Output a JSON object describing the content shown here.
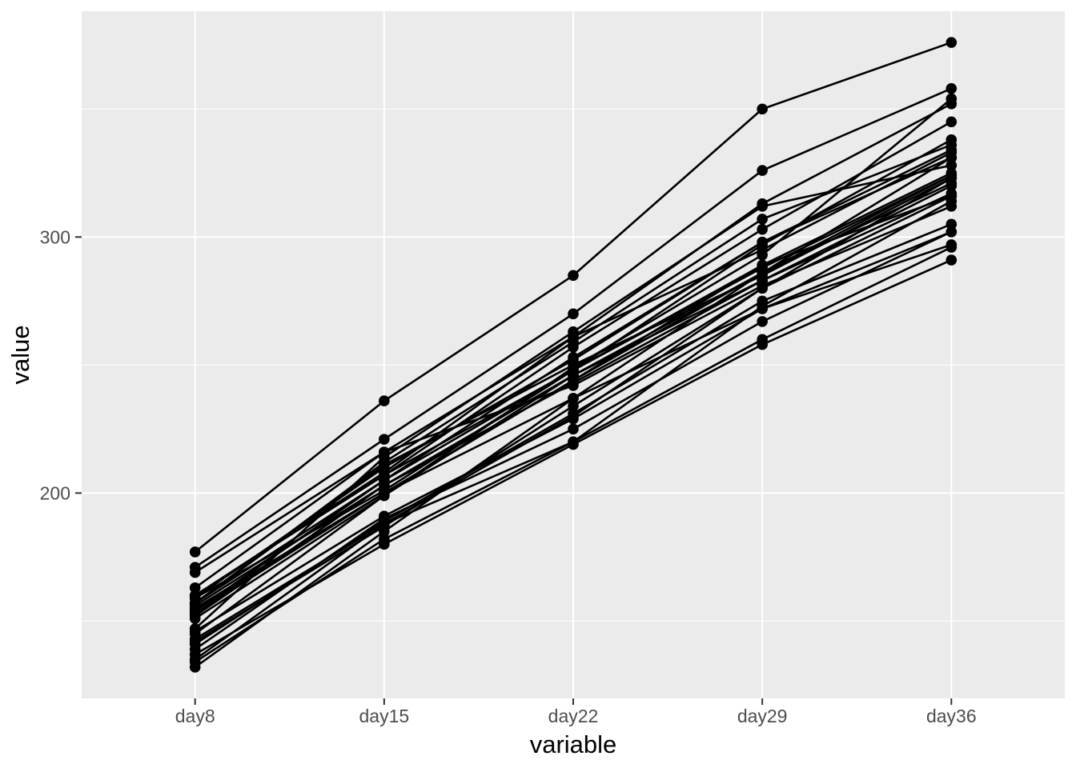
{
  "chart_data": {
    "type": "line",
    "title": "",
    "xlabel": "variable",
    "ylabel": "value",
    "categories": [
      "day8",
      "day15",
      "day22",
      "day29",
      "day36"
    ],
    "series": [
      [
        151,
        199,
        246,
        283,
        320
      ],
      [
        145,
        199,
        249,
        293,
        354
      ],
      [
        147,
        214,
        263,
        312,
        328
      ],
      [
        155,
        200,
        237,
        272,
        297
      ],
      [
        135,
        188,
        230,
        280,
        323
      ],
      [
        159,
        210,
        252,
        298,
        331
      ],
      [
        141,
        189,
        231,
        275,
        305
      ],
      [
        159,
        201,
        248,
        297,
        338
      ],
      [
        177,
        236,
        285,
        350,
        376
      ],
      [
        134,
        182,
        220,
        260,
        296
      ],
      [
        160,
        208,
        261,
        313,
        352
      ],
      [
        143,
        188,
        220,
        273,
        314
      ],
      [
        154,
        200,
        244,
        289,
        325
      ],
      [
        171,
        221,
        270,
        326,
        358
      ],
      [
        163,
        216,
        242,
        281,
        312
      ],
      [
        160,
        207,
        248,
        288,
        324
      ],
      [
        142,
        187,
        234,
        280,
        316
      ],
      [
        156,
        203,
        243,
        283,
        317
      ],
      [
        157,
        212,
        259,
        307,
        336
      ],
      [
        152,
        203,
        246,
        286,
        321
      ],
      [
        154,
        205,
        253,
        298,
        334
      ],
      [
        139,
        190,
        225,
        267,
        302
      ],
      [
        146,
        191,
        229,
        272,
        302
      ],
      [
        157,
        211,
        250,
        285,
        323
      ],
      [
        132,
        185,
        237,
        286,
        331
      ],
      [
        160,
        207,
        257,
        303,
        345
      ],
      [
        169,
        216,
        261,
        295,
        333
      ],
      [
        157,
        205,
        248,
        289,
        316
      ],
      [
        137,
        180,
        219,
        258,
        291
      ],
      [
        153,
        200,
        244,
        286,
        324
      ]
    ],
    "y_tick_labels": [
      "200",
      "300"
    ],
    "y_tick_values": [
      200,
      300
    ],
    "y_minor_gridline_values": [
      150,
      250,
      350
    ],
    "ylim": [
      119.8,
      388.2
    ],
    "grid": "on",
    "legend": "none",
    "marker": "point",
    "colors": {
      "panel_background": "#EBEBEB",
      "gridline": "#FFFFFF",
      "line": "#000000",
      "point": "#000000",
      "axis_text": "#4D4D4D",
      "axis_title": "#000000",
      "tick_mark": "#333333",
      "page_background": "#FFFFFF"
    }
  }
}
